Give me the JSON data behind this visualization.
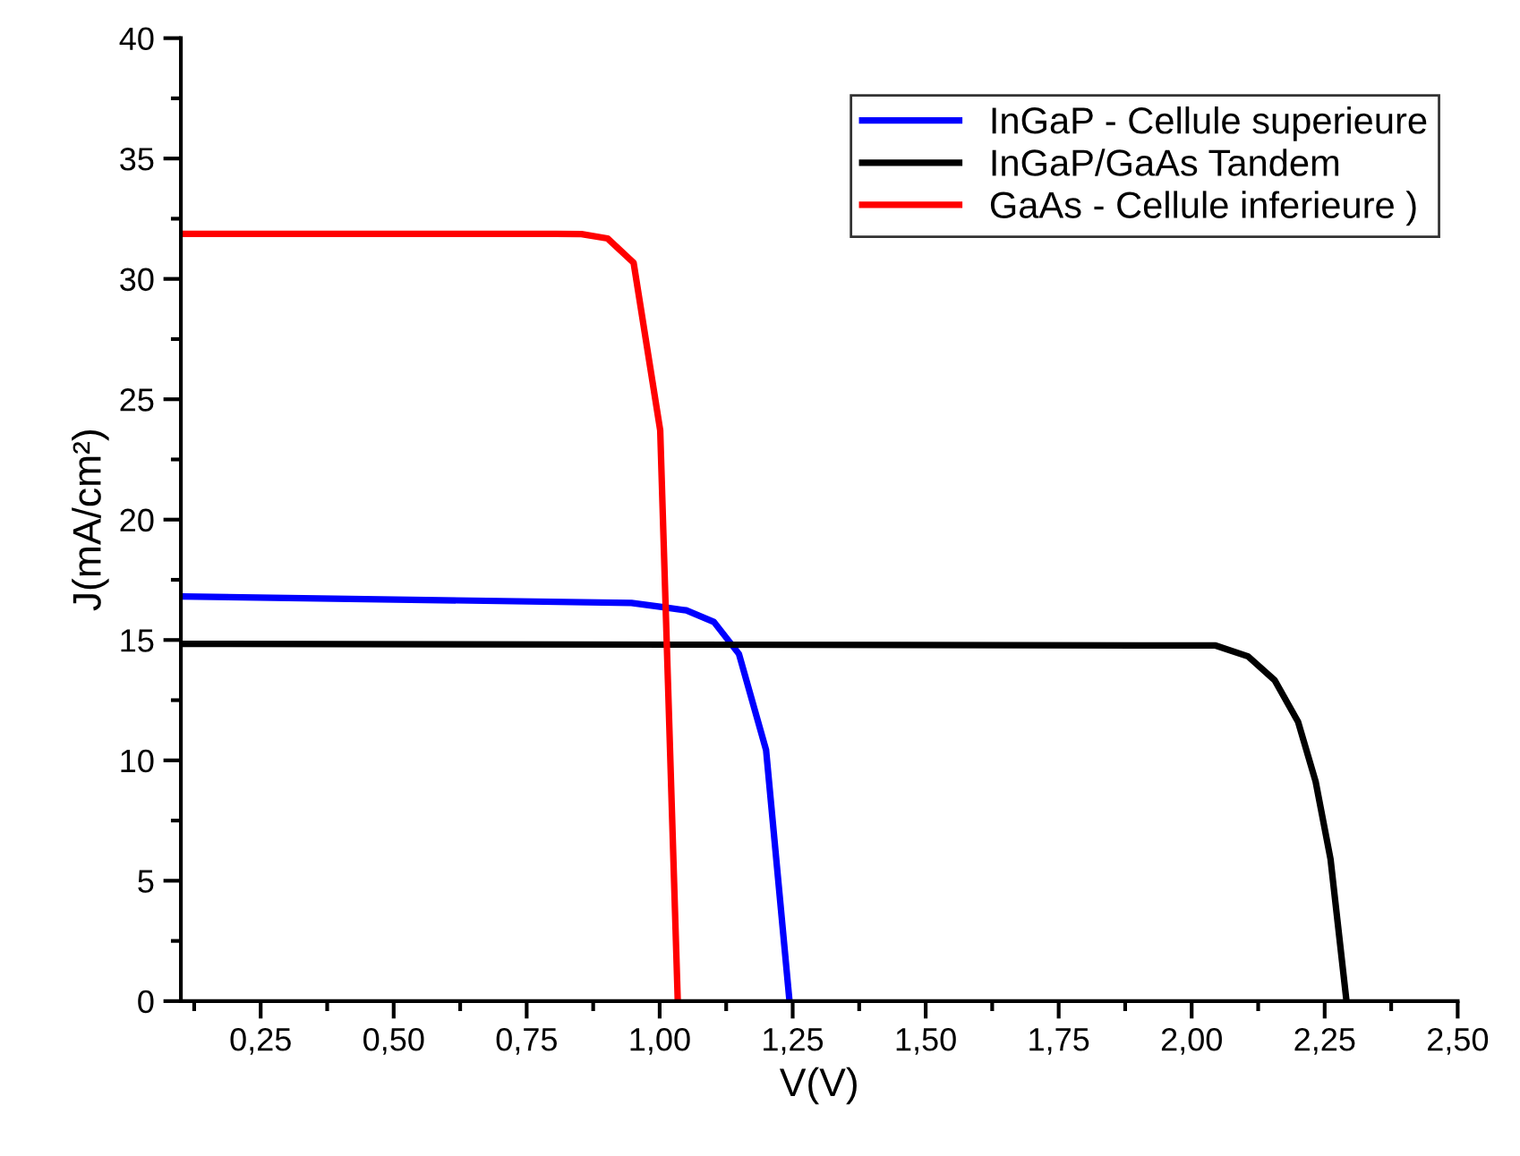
{
  "chart_data": {
    "type": "line",
    "xlabel": "V(V)",
    "ylabel": "J(mA/cm²)",
    "xlim": [
      0.1,
      2.5
    ],
    "ylim": [
      0,
      40
    ],
    "xticks": [
      {
        "value": 0.25,
        "label": "0,25"
      },
      {
        "value": 0.5,
        "label": "0,50"
      },
      {
        "value": 0.75,
        "label": "0,75"
      },
      {
        "value": 1.0,
        "label": "1,00"
      },
      {
        "value": 1.25,
        "label": "1,25"
      },
      {
        "value": 1.5,
        "label": "1,50"
      },
      {
        "value": 1.75,
        "label": "1,75"
      },
      {
        "value": 2.0,
        "label": "2,00"
      },
      {
        "value": 2.25,
        "label": "2,25"
      },
      {
        "value": 2.5,
        "label": "2,50"
      }
    ],
    "yticks": [
      0,
      5,
      10,
      15,
      20,
      25,
      30,
      35,
      40
    ],
    "grid": false,
    "legend": "top right",
    "marker": "none",
    "line_style": "solid",
    "series": [
      {
        "name": "InGaP - Cellule superieure",
        "color": "#0000ff",
        "x": [
          0.103,
          0.947,
          1.007,
          1.05,
          1.102,
          1.149,
          1.2,
          1.244
        ],
        "values": [
          16.81,
          16.54,
          16.36,
          16.23,
          15.75,
          14.42,
          10.43,
          0
        ]
      },
      {
        "name": "InGaP/GaAs Tandem",
        "color": "#000000",
        "x": [
          0.103,
          2.045,
          2.106,
          2.156,
          2.2,
          2.233,
          2.261,
          2.291
        ],
        "values": [
          14.84,
          14.77,
          14.32,
          13.33,
          11.6,
          9.12,
          5.9,
          0
        ]
      },
      {
        "name": "GaAs - Cellule inferieure )",
        "color": "#ff0000",
        "x": [
          0.103,
          0.805,
          0.853,
          0.902,
          0.951,
          1.001,
          1.034
        ],
        "values": [
          31.87,
          31.87,
          31.86,
          31.68,
          30.67,
          23.71,
          0
        ]
      }
    ]
  }
}
